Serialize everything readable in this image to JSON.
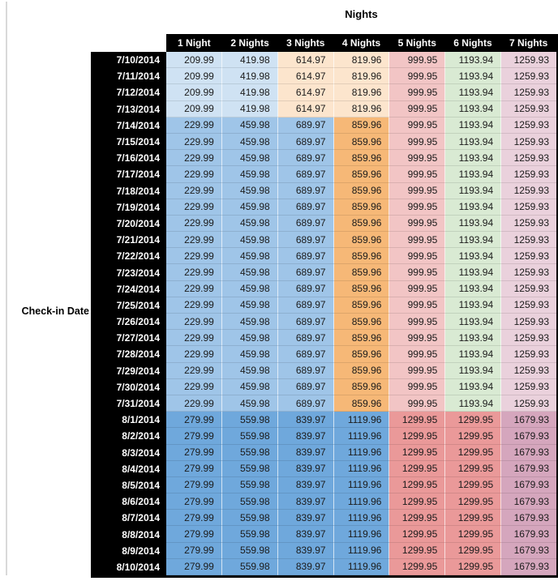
{
  "table": {
    "title": "Nights",
    "row_axis_label": "Check-in Date",
    "columns": [
      "1 Night",
      "2 Nights",
      "3 Nights",
      "4 Nights",
      "5 Nights",
      "6 Nights",
      "7 Nights"
    ],
    "palette": {
      "paleBlue": "#CFE2F3",
      "midBlue": "#9FC5E8",
      "darkBlue": "#6FA8DC",
      "paleOrange": "#FCE5CD",
      "midOrange": "#F6B877",
      "lightRed": "#F2C5C5",
      "salmon": "#EA9999",
      "lightGreen": "#D9EAD3",
      "lightMagenta": "#EAD1DC",
      "mauve": "#D5A6BD",
      "headerBg": "#000000",
      "headerText": "#FFFFFF"
    },
    "bands": {
      "A": [
        "paleBlue",
        "paleBlue",
        "paleOrange",
        "paleOrange",
        "lightRed",
        "lightGreen",
        "lightMagenta"
      ],
      "B": [
        "midBlue",
        "midBlue",
        "midBlue",
        "midOrange",
        "lightRed",
        "lightGreen",
        "lightMagenta"
      ],
      "C": [
        "darkBlue",
        "darkBlue",
        "darkBlue",
        "darkBlue",
        "salmon",
        "salmon",
        "mauve"
      ]
    },
    "rows": [
      {
        "date": "7/10/2014",
        "band": "A",
        "values": [
          "209.99",
          "419.98",
          "614.97",
          "819.96",
          "999.95",
          "1193.94",
          "1259.93"
        ]
      },
      {
        "date": "7/11/2014",
        "band": "A",
        "values": [
          "209.99",
          "419.98",
          "614.97",
          "819.96",
          "999.95",
          "1193.94",
          "1259.93"
        ]
      },
      {
        "date": "7/12/2014",
        "band": "A",
        "values": [
          "209.99",
          "419.98",
          "614.97",
          "819.96",
          "999.95",
          "1193.94",
          "1259.93"
        ]
      },
      {
        "date": "7/13/2014",
        "band": "A",
        "values": [
          "209.99",
          "419.98",
          "614.97",
          "819.96",
          "999.95",
          "1193.94",
          "1259.93"
        ]
      },
      {
        "date": "7/14/2014",
        "band": "B",
        "values": [
          "229.99",
          "459.98",
          "689.97",
          "859.96",
          "999.95",
          "1193.94",
          "1259.93"
        ]
      },
      {
        "date": "7/15/2014",
        "band": "B",
        "values": [
          "229.99",
          "459.98",
          "689.97",
          "859.96",
          "999.95",
          "1193.94",
          "1259.93"
        ]
      },
      {
        "date": "7/16/2014",
        "band": "B",
        "values": [
          "229.99",
          "459.98",
          "689.97",
          "859.96",
          "999.95",
          "1193.94",
          "1259.93"
        ]
      },
      {
        "date": "7/17/2014",
        "band": "B",
        "values": [
          "229.99",
          "459.98",
          "689.97",
          "859.96",
          "999.95",
          "1193.94",
          "1259.93"
        ]
      },
      {
        "date": "7/18/2014",
        "band": "B",
        "values": [
          "229.99",
          "459.98",
          "689.97",
          "859.96",
          "999.95",
          "1193.94",
          "1259.93"
        ]
      },
      {
        "date": "7/19/2014",
        "band": "B",
        "values": [
          "229.99",
          "459.98",
          "689.97",
          "859.96",
          "999.95",
          "1193.94",
          "1259.93"
        ]
      },
      {
        "date": "7/20/2014",
        "band": "B",
        "values": [
          "229.99",
          "459.98",
          "689.97",
          "859.96",
          "999.95",
          "1193.94",
          "1259.93"
        ]
      },
      {
        "date": "7/21/2014",
        "band": "B",
        "values": [
          "229.99",
          "459.98",
          "689.97",
          "859.96",
          "999.95",
          "1193.94",
          "1259.93"
        ]
      },
      {
        "date": "7/22/2014",
        "band": "B",
        "values": [
          "229.99",
          "459.98",
          "689.97",
          "859.96",
          "999.95",
          "1193.94",
          "1259.93"
        ]
      },
      {
        "date": "7/23/2014",
        "band": "B",
        "values": [
          "229.99",
          "459.98",
          "689.97",
          "859.96",
          "999.95",
          "1193.94",
          "1259.93"
        ]
      },
      {
        "date": "7/24/2014",
        "band": "B",
        "values": [
          "229.99",
          "459.98",
          "689.97",
          "859.96",
          "999.95",
          "1193.94",
          "1259.93"
        ]
      },
      {
        "date": "7/25/2014",
        "band": "B",
        "values": [
          "229.99",
          "459.98",
          "689.97",
          "859.96",
          "999.95",
          "1193.94",
          "1259.93"
        ]
      },
      {
        "date": "7/26/2014",
        "band": "B",
        "values": [
          "229.99",
          "459.98",
          "689.97",
          "859.96",
          "999.95",
          "1193.94",
          "1259.93"
        ]
      },
      {
        "date": "7/27/2014",
        "band": "B",
        "values": [
          "229.99",
          "459.98",
          "689.97",
          "859.96",
          "999.95",
          "1193.94",
          "1259.93"
        ]
      },
      {
        "date": "7/28/2014",
        "band": "B",
        "values": [
          "229.99",
          "459.98",
          "689.97",
          "859.96",
          "999.95",
          "1193.94",
          "1259.93"
        ]
      },
      {
        "date": "7/29/2014",
        "band": "B",
        "values": [
          "229.99",
          "459.98",
          "689.97",
          "859.96",
          "999.95",
          "1193.94",
          "1259.93"
        ]
      },
      {
        "date": "7/30/2014",
        "band": "B",
        "values": [
          "229.99",
          "459.98",
          "689.97",
          "859.96",
          "999.95",
          "1193.94",
          "1259.93"
        ]
      },
      {
        "date": "7/31/2014",
        "band": "B",
        "values": [
          "229.99",
          "459.98",
          "689.97",
          "859.96",
          "999.95",
          "1193.94",
          "1259.93"
        ]
      },
      {
        "date": "8/1/2014",
        "band": "C",
        "values": [
          "279.99",
          "559.98",
          "839.97",
          "1119.96",
          "1299.95",
          "1299.95",
          "1679.93"
        ]
      },
      {
        "date": "8/2/2014",
        "band": "C",
        "values": [
          "279.99",
          "559.98",
          "839.97",
          "1119.96",
          "1299.95",
          "1299.95",
          "1679.93"
        ]
      },
      {
        "date": "8/3/2014",
        "band": "C",
        "values": [
          "279.99",
          "559.98",
          "839.97",
          "1119.96",
          "1299.95",
          "1299.95",
          "1679.93"
        ]
      },
      {
        "date": "8/4/2014",
        "band": "C",
        "values": [
          "279.99",
          "559.98",
          "839.97",
          "1119.96",
          "1299.95",
          "1299.95",
          "1679.93"
        ]
      },
      {
        "date": "8/5/2014",
        "band": "C",
        "values": [
          "279.99",
          "559.98",
          "839.97",
          "1119.96",
          "1299.95",
          "1299.95",
          "1679.93"
        ]
      },
      {
        "date": "8/6/2014",
        "band": "C",
        "values": [
          "279.99",
          "559.98",
          "839.97",
          "1119.96",
          "1299.95",
          "1299.95",
          "1679.93"
        ]
      },
      {
        "date": "8/7/2014",
        "band": "C",
        "values": [
          "279.99",
          "559.98",
          "839.97",
          "1119.96",
          "1299.95",
          "1299.95",
          "1679.93"
        ]
      },
      {
        "date": "8/8/2014",
        "band": "C",
        "values": [
          "279.99",
          "559.98",
          "839.97",
          "1119.96",
          "1299.95",
          "1299.95",
          "1679.93"
        ]
      },
      {
        "date": "8/9/2014",
        "band": "C",
        "values": [
          "279.99",
          "559.98",
          "839.97",
          "1119.96",
          "1299.95",
          "1299.95",
          "1679.93"
        ]
      },
      {
        "date": "8/10/2014",
        "band": "C",
        "values": [
          "279.99",
          "559.98",
          "839.97",
          "1119.96",
          "1299.95",
          "1299.95",
          "1679.93"
        ]
      }
    ]
  }
}
